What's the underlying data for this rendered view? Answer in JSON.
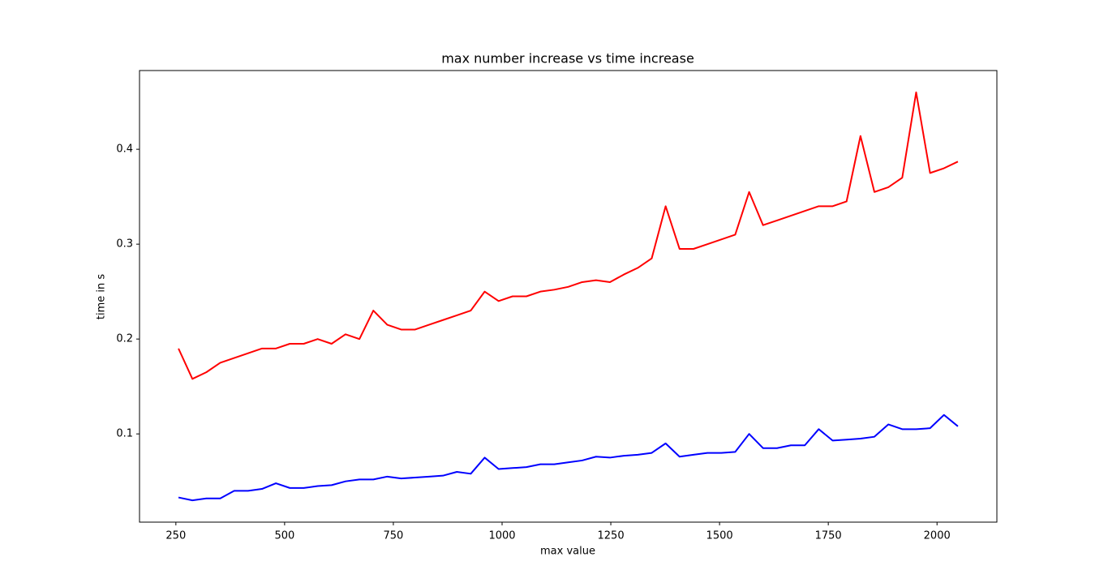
{
  "chart_data": {
    "type": "line",
    "title": "max number increase vs time increase",
    "x_label": "max value",
    "y_label": "time in s",
    "x": [
      256,
      288,
      320,
      352,
      384,
      416,
      448,
      480,
      512,
      544,
      576,
      608,
      640,
      672,
      704,
      736,
      768,
      800,
      832,
      864,
      896,
      928,
      960,
      992,
      1024,
      1056,
      1088,
      1120,
      1152,
      1184,
      1216,
      1248,
      1280,
      1312,
      1344,
      1376,
      1408,
      1440,
      1472,
      1504,
      1536,
      1568,
      1600,
      1632,
      1664,
      1696,
      1728,
      1760,
      1792,
      1824,
      1856,
      1888,
      1920,
      1952,
      1984,
      2016,
      2048
    ],
    "series": [
      {
        "color": "#ff0000",
        "values": [
          0.19,
          0.158,
          0.165,
          0.175,
          0.18,
          0.185,
          0.19,
          0.19,
          0.195,
          0.195,
          0.2,
          0.195,
          0.205,
          0.2,
          0.23,
          0.215,
          0.21,
          0.21,
          0.215,
          0.22,
          0.225,
          0.23,
          0.25,
          0.24,
          0.245,
          0.245,
          0.25,
          0.252,
          0.255,
          0.26,
          0.262,
          0.26,
          0.268,
          0.275,
          0.285,
          0.34,
          0.295,
          0.295,
          0.3,
          0.305,
          0.31,
          0.355,
          0.32,
          0.325,
          0.33,
          0.335,
          0.34,
          0.34,
          0.345,
          0.414,
          0.355,
          0.36,
          0.37,
          0.46,
          0.375,
          0.38,
          0.387
        ]
      },
      {
        "color": "#0000ff",
        "values": [
          0.033,
          0.03,
          0.032,
          0.032,
          0.04,
          0.04,
          0.042,
          0.048,
          0.043,
          0.043,
          0.045,
          0.046,
          0.05,
          0.052,
          0.052,
          0.055,
          0.053,
          0.054,
          0.055,
          0.056,
          0.06,
          0.058,
          0.075,
          0.063,
          0.064,
          0.065,
          0.068,
          0.068,
          0.07,
          0.072,
          0.076,
          0.075,
          0.077,
          0.078,
          0.08,
          0.09,
          0.076,
          0.078,
          0.08,
          0.08,
          0.081,
          0.1,
          0.085,
          0.085,
          0.088,
          0.088,
          0.105,
          0.093,
          0.094,
          0.095,
          0.097,
          0.11,
          0.105,
          0.105,
          0.106,
          0.12,
          0.108
        ]
      }
    ],
    "xlim": [
      166.4,
      2137.6
    ],
    "xticks": [
      250,
      500,
      750,
      1000,
      1250,
      1500,
      1750,
      2000
    ],
    "ylim": [
      0.007,
      0.483
    ],
    "yticks": [
      0.1,
      0.2,
      0.3,
      0.4
    ],
    "grid": false
  }
}
